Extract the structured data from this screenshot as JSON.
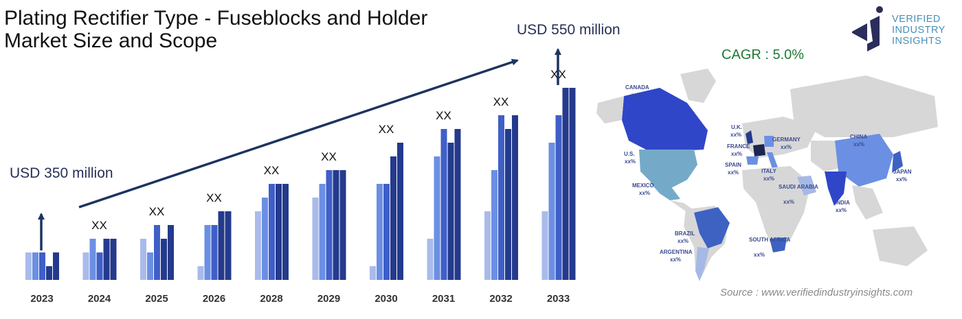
{
  "title": "Plating Rectifier Type - Fuseblocks and Holder Market Size and Scope",
  "logo": {
    "line1": "VERIFIED",
    "line2": "INDUSTRY",
    "line3": "INSIGHTS"
  },
  "cagr": "CAGR : 5.0%",
  "source": "Source : www.verifiedindustryinsights.com",
  "colors": {
    "shade1": "#a9bbeb",
    "shade2": "#6b8fe3",
    "shade3": "#3f5fc8",
    "shade4": "#243a8c",
    "arrow": "#1d3461",
    "title": "#111111",
    "cagr": "#1f7a34"
  },
  "chart_data": {
    "type": "bar",
    "categories": [
      "2023",
      "2024",
      "2025",
      "2026",
      "2028",
      "2029",
      "2030",
      "2031",
      "2032",
      "2033"
    ],
    "bar_labels": [
      "",
      "XX",
      "XX",
      "XX",
      "XX",
      "XX",
      "XX",
      "XX",
      "XX",
      "XX"
    ],
    "series": [
      {
        "values": [
          2,
          2,
          3,
          1,
          5,
          6,
          1,
          3,
          5,
          5
        ]
      },
      {
        "values": [
          2,
          3,
          2,
          4,
          6,
          7,
          7,
          9,
          8,
          10
        ]
      },
      {
        "values": [
          2,
          2,
          4,
          4,
          7,
          8,
          7,
          11,
          12,
          12
        ]
      },
      {
        "values": [
          1,
          3,
          3,
          5,
          7,
          8,
          9,
          10,
          11,
          14
        ]
      },
      {
        "values": [
          2,
          3,
          4,
          5,
          7,
          8,
          10,
          11,
          12,
          14
        ]
      }
    ],
    "start_label": "USD 350 million",
    "end_label": "USD 550 million",
    "ylim": [
      0,
      14
    ]
  },
  "map": {
    "countries": [
      {
        "name": "CANADA",
        "value": "xx%"
      },
      {
        "name": "U.S.",
        "value": "xx%"
      },
      {
        "name": "MEXICO",
        "value": "xx%"
      },
      {
        "name": "BRAZIL",
        "value": "xx%"
      },
      {
        "name": "ARGENTINA",
        "value": "xx%"
      },
      {
        "name": "U.K.",
        "value": "xx%"
      },
      {
        "name": "FRANCE",
        "value": "xx%"
      },
      {
        "name": "SPAIN",
        "value": "xx%"
      },
      {
        "name": "GERMANY",
        "value": "xx%"
      },
      {
        "name": "ITALY",
        "value": "xx%"
      },
      {
        "name": "SAUDI ARABIA",
        "value": "xx%"
      },
      {
        "name": "SOUTH AFRICA",
        "value": "xx%"
      },
      {
        "name": "CHINA",
        "value": "xx%"
      },
      {
        "name": "INDIA",
        "value": "xx%"
      },
      {
        "name": "JAPAN",
        "value": "xx%"
      }
    ]
  }
}
